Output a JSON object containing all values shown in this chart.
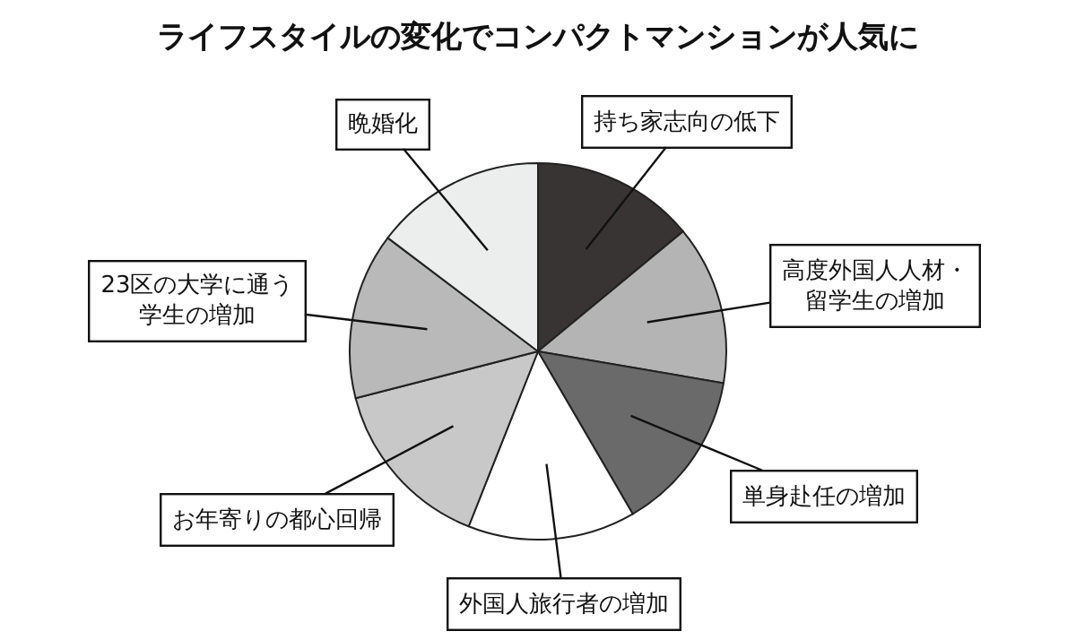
{
  "chart_data": {
    "type": "pie",
    "title": "ライフスタイルの変化でコンパクトマンションが人気に",
    "categories": [
      "持ち家志向の低下",
      "高度外国人人材・留学生の増加",
      "単身赴任の増加",
      "外国人旅行者の増加",
      "お年寄りの都心回帰",
      "23区の大学に通う学生の増加",
      "晩婚化"
    ],
    "values": [
      14.0,
      13.7,
      13.9,
      14.4,
      15.0,
      14.3,
      14.7
    ],
    "colors": [
      "#383434",
      "#b4b4b4",
      "#6a6a6a",
      "#ffffff",
      "#c8c8c8",
      "#b9b9b9",
      "#eceeee"
    ],
    "legend": false
  }
}
